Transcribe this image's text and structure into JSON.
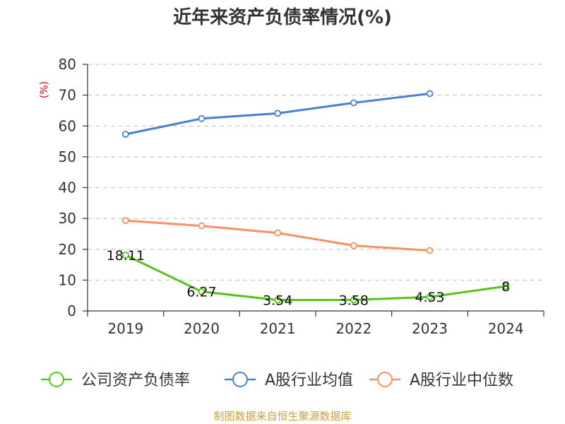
{
  "chart_data": {
    "type": "line",
    "title": "近年来资产负债率情况(%)",
    "ylabel": "(%)",
    "ylim": [
      0,
      80
    ],
    "yticks": [
      0,
      10,
      20,
      30,
      40,
      50,
      60,
      70,
      80
    ],
    "categories": [
      "2019",
      "2020",
      "2021",
      "2022",
      "2023",
      "2024"
    ],
    "grid": true,
    "legend_position": "bottom",
    "series": [
      {
        "name": "公司资产负债率",
        "color": "#52c41a",
        "values": [
          18.11,
          6.27,
          3.54,
          3.58,
          4.53,
          8
        ],
        "labels": [
          "18.11",
          "6.27",
          "3.54",
          "3.58",
          "4.53",
          "8"
        ]
      },
      {
        "name": "A股行业均值",
        "color": "#4a7fd6",
        "values": [
          57.3,
          62.4,
          64.1,
          67.5,
          70.5,
          null
        ]
      },
      {
        "name": "A股行业中位数",
        "color": "#f89060",
        "values": [
          29.3,
          27.6,
          25.3,
          21.2,
          19.6,
          null
        ]
      }
    ],
    "ylabel_color": "#cc0000",
    "source": "制图数据来自恒生聚源数据库",
    "source_color": "#c8a040"
  }
}
